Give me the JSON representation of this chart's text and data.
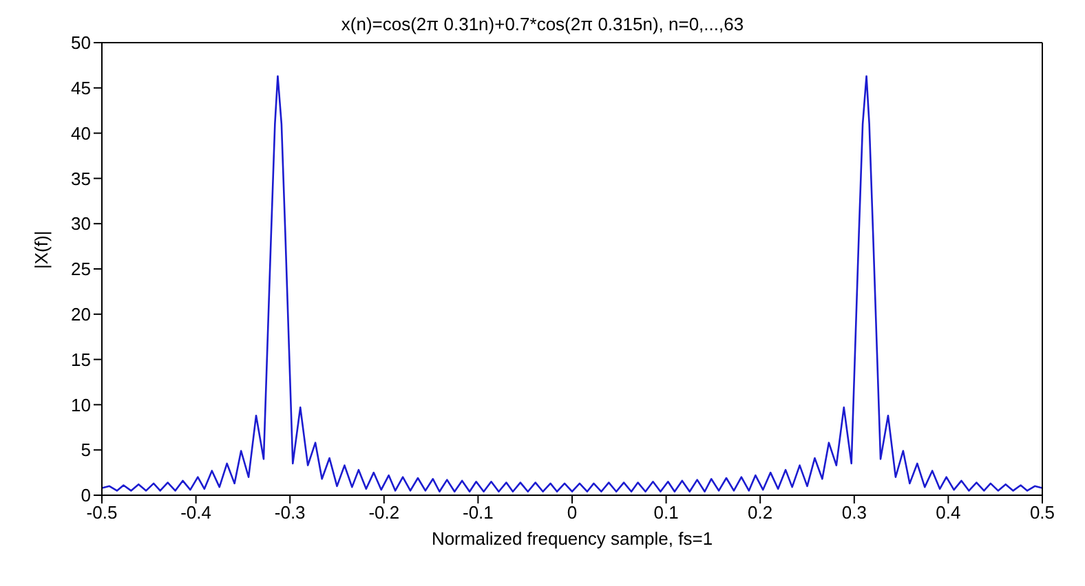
{
  "chart_data": {
    "type": "line",
    "title": "x(n)=cos(2π 0.31n)+0.7*cos(2π 0.315n), n=0,...,63",
    "xlabel": "Normalized frequency sample, fs=1",
    "ylabel": "|X(f)|",
    "xlim": [
      -0.5,
      0.5
    ],
    "xticks": [
      -0.5,
      -0.4,
      -0.3,
      -0.2,
      -0.1,
      0,
      0.1,
      0.2,
      0.3,
      0.4,
      0.5
    ],
    "ylim": [
      0,
      50
    ],
    "yticks": [
      0,
      5,
      10,
      15,
      20,
      25,
      30,
      35,
      40,
      45,
      50
    ],
    "grid": false,
    "marker": "none",
    "line_style": "solid",
    "series": [
      {
        "color": "#1c1cd0",
        "x": [
          -0.5,
          -0.492,
          -0.484,
          -0.477,
          -0.469,
          -0.461,
          -0.453,
          -0.445,
          -0.438,
          -0.43,
          -0.422,
          -0.414,
          -0.406,
          -0.398,
          -0.391,
          -0.383,
          -0.375,
          -0.367,
          -0.359,
          -0.352,
          -0.344,
          -0.336,
          -0.328,
          -0.32,
          -0.316,
          -0.313,
          -0.309,
          -0.305,
          -0.297,
          -0.289,
          -0.281,
          -0.273,
          -0.266,
          -0.258,
          -0.25,
          -0.242,
          -0.234,
          -0.227,
          -0.219,
          -0.211,
          -0.203,
          -0.195,
          -0.188,
          -0.18,
          -0.172,
          -0.164,
          -0.156,
          -0.148,
          -0.141,
          -0.133,
          -0.125,
          -0.117,
          -0.109,
          -0.102,
          -0.094,
          -0.086,
          -0.078,
          -0.07,
          -0.063,
          -0.055,
          -0.047,
          -0.039,
          -0.031,
          -0.023,
          -0.016,
          -0.008,
          0,
          0.008,
          0.016,
          0.023,
          0.031,
          0.039,
          0.047,
          0.055,
          0.063,
          0.07,
          0.078,
          0.086,
          0.094,
          0.102,
          0.109,
          0.117,
          0.125,
          0.133,
          0.141,
          0.148,
          0.156,
          0.164,
          0.172,
          0.18,
          0.188,
          0.195,
          0.203,
          0.211,
          0.219,
          0.227,
          0.234,
          0.242,
          0.25,
          0.258,
          0.266,
          0.273,
          0.281,
          0.289,
          0.297,
          0.305,
          0.309,
          0.313,
          0.316,
          0.32,
          0.328,
          0.336,
          0.344,
          0.352,
          0.359,
          0.367,
          0.375,
          0.383,
          0.391,
          0.398,
          0.406,
          0.414,
          0.422,
          0.43,
          0.438,
          0.445,
          0.453,
          0.461,
          0.469,
          0.477,
          0.484,
          0.492,
          0.5
        ],
        "values": [
          0.8,
          1.0,
          0.5,
          1.1,
          0.5,
          1.2,
          0.5,
          1.3,
          0.5,
          1.4,
          0.5,
          1.6,
          0.6,
          2.0,
          0.7,
          2.7,
          0.9,
          3.5,
          1.3,
          4.9,
          2.0,
          8.8,
          4.0,
          29,
          41,
          46.3,
          41,
          29,
          3.5,
          9.7,
          3.3,
          5.8,
          1.8,
          4.1,
          1.0,
          3.3,
          0.9,
          2.8,
          0.7,
          2.5,
          0.6,
          2.2,
          0.5,
          2.0,
          0.5,
          1.9,
          0.5,
          1.8,
          0.4,
          1.7,
          0.4,
          1.6,
          0.4,
          1.5,
          0.4,
          1.5,
          0.4,
          1.4,
          0.4,
          1.4,
          0.4,
          1.4,
          0.4,
          1.3,
          0.4,
          1.3,
          0.4,
          1.3,
          0.4,
          1.3,
          0.4,
          1.4,
          0.4,
          1.4,
          0.4,
          1.4,
          0.4,
          1.5,
          0.4,
          1.5,
          0.4,
          1.6,
          0.4,
          1.7,
          0.4,
          1.8,
          0.5,
          1.9,
          0.5,
          2.0,
          0.5,
          2.2,
          0.6,
          2.5,
          0.7,
          2.8,
          0.9,
          3.3,
          1.0,
          4.1,
          1.8,
          5.8,
          3.3,
          9.7,
          3.5,
          29,
          41,
          46.3,
          41,
          29,
          4.0,
          8.8,
          2.0,
          4.9,
          1.3,
          3.5,
          0.9,
          2.7,
          0.7,
          2.0,
          0.6,
          1.6,
          0.5,
          1.4,
          0.5,
          1.3,
          0.5,
          1.2,
          0.5,
          1.1,
          0.5,
          1.0,
          0.8
        ]
      }
    ]
  }
}
